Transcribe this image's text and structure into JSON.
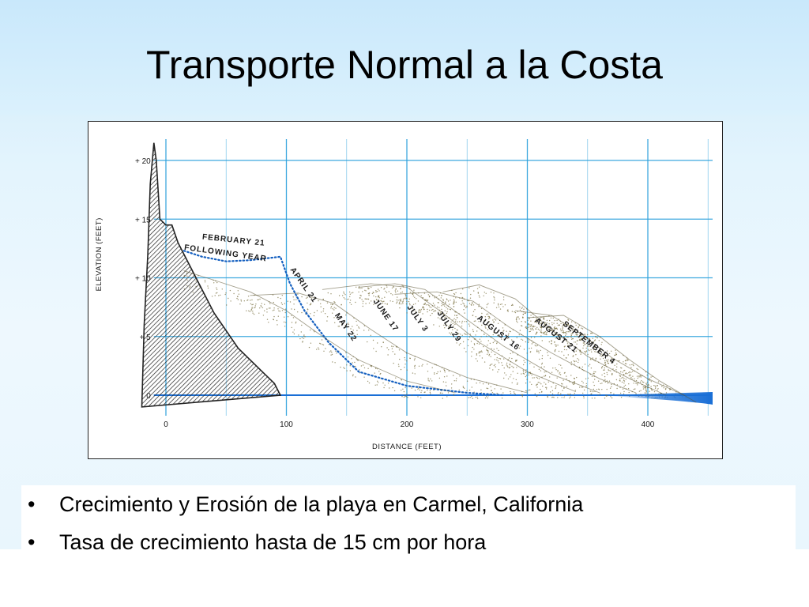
{
  "slide": {
    "title": "Transporte Normal a la Costa",
    "bullets": [
      "Crecimiento y Erosión de la playa en Carmel, California",
      "Tasa de crecimiento hasta de 15 cm por hora"
    ]
  },
  "colors": {
    "grid": "#2aa0dc",
    "water": "#1a6fd6",
    "dotted_curve": "#1560c0",
    "cliff_hatch": "#222222",
    "sand": "#7a7040"
  },
  "chart_data": {
    "type": "line",
    "xlabel": "DISTANCE (FEET)",
    "ylabel": "ELEVATION (FEET)",
    "xlim": [
      -10,
      460
    ],
    "ylim": [
      -3,
      21.5
    ],
    "x_ticks": [
      0,
      100,
      200,
      300,
      400
    ],
    "x_tick_labels": [
      "0",
      "100",
      "200",
      "300",
      "400"
    ],
    "y_ticks": [
      0,
      5,
      10,
      15,
      20
    ],
    "y_tick_labels": [
      "0",
      "+ 5",
      "+ 10",
      "+ 15",
      "+ 20"
    ],
    "grid": true,
    "series": [
      {
        "name": "FEBRUARY 21 FOLLOWING YEAR",
        "style": "dotted",
        "x": [
          15,
          30,
          50,
          70,
          95,
          103,
          115,
          135,
          160,
          200,
          250,
          280
        ],
        "y": [
          12.3,
          11.8,
          11.4,
          11.5,
          11.8,
          9.5,
          7.2,
          4.5,
          2.0,
          0.8,
          0.2,
          0
        ]
      },
      {
        "name": "APRIL 21",
        "x": [
          15,
          40,
          70,
          100,
          130,
          160,
          200,
          240
        ],
        "y": [
          10.6,
          9.8,
          8.8,
          7.2,
          5.0,
          3.0,
          1.2,
          0.2
        ]
      },
      {
        "name": "MAY 22",
        "x": [
          70,
          110,
          140,
          170,
          200,
          250,
          300
        ],
        "y": [
          8.5,
          8.7,
          7.8,
          5.6,
          3.6,
          1.5,
          0.2
        ]
      },
      {
        "name": "JUNE 17",
        "x": [
          130,
          170,
          200,
          230,
          260,
          300,
          340
        ],
        "y": [
          9.0,
          9.5,
          9.2,
          7.0,
          4.5,
          2.0,
          0.3
        ]
      },
      {
        "name": "JULY 3",
        "x": [
          160,
          190,
          215,
          245,
          280,
          320,
          360
        ],
        "y": [
          9.2,
          9.5,
          9.0,
          6.8,
          4.2,
          1.8,
          0.2
        ]
      },
      {
        "name": "JULY 29",
        "x": [
          190,
          225,
          255,
          285,
          320,
          360,
          390
        ],
        "y": [
          8.6,
          8.8,
          8.0,
          5.8,
          3.6,
          1.4,
          0.2
        ]
      },
      {
        "name": "AUGUST 16",
        "x": [
          230,
          260,
          290,
          320,
          350,
          385,
          415
        ],
        "y": [
          8.8,
          9.4,
          8.2,
          5.6,
          3.3,
          1.4,
          0
        ]
      },
      {
        "name": "AUGUST 21",
        "x": [
          290,
          320,
          345,
          370,
          400,
          430
        ],
        "y": [
          7.2,
          6.8,
          5.2,
          3.2,
          1.4,
          0
        ]
      },
      {
        "name": "SEPTEMBER 4",
        "x": [
          300,
          330,
          360,
          385,
          410,
          440
        ],
        "y": [
          6.6,
          6.8,
          5.0,
          3.0,
          1.2,
          -0.6
        ]
      }
    ],
    "cliff_profile": {
      "x": [
        -20,
        -18,
        -15,
        -13,
        -10,
        -8,
        -5,
        0,
        5,
        10,
        25,
        40,
        60,
        80,
        90,
        95
      ],
      "y": [
        -1,
        6,
        12,
        18,
        21.5,
        20,
        15,
        14.5,
        14.5,
        13,
        10,
        7,
        4,
        2,
        1,
        0
      ]
    }
  }
}
